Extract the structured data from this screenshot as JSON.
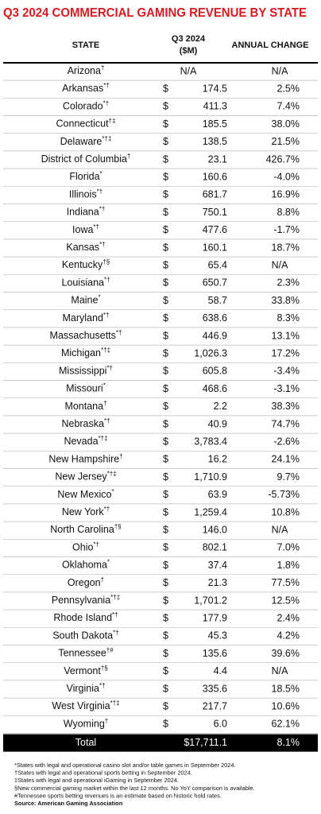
{
  "title": "Q3 2024 COMMERCIAL GAMING REVENUE BY STATE",
  "header": {
    "state": "STATE",
    "q3": [
      "Q3 2024",
      "($M)"
    ],
    "change": "ANNUAL CHANGE"
  },
  "rows": [
    {
      "state": "Arizona",
      "sup": "†",
      "q3": "N/A",
      "change": "N/A"
    },
    {
      "state": "Arkansas",
      "sup": "*†",
      "currency": "$",
      "q3": "174.5",
      "change": "2.5%"
    },
    {
      "state": "Colorado",
      "sup": "*†",
      "currency": "$",
      "q3": "411.3",
      "change": "7.4%"
    },
    {
      "state": "Connecticut",
      "sup": "†‡",
      "currency": "$",
      "q3": "185.5",
      "change": "38.0%"
    },
    {
      "state": "Delaware",
      "sup": "*†‡",
      "currency": "$",
      "q3": "138.5",
      "change": "21.5%"
    },
    {
      "state": "District of Columbia",
      "sup": "†",
      "currency": "$",
      "q3": "23.1",
      "change": "426.7%"
    },
    {
      "state": "Florida",
      "sup": "*",
      "currency": "$",
      "q3": "160.6",
      "change": "-4.0%"
    },
    {
      "state": "Illinois",
      "sup": "*†",
      "currency": "$",
      "q3": "681.7",
      "change": "16.9%"
    },
    {
      "state": "Indiana",
      "sup": "*†",
      "currency": "$",
      "q3": "750.1",
      "change": "8.8%"
    },
    {
      "state": "Iowa",
      "sup": "*†",
      "currency": "$",
      "q3": "477.6",
      "change": "-1.7%"
    },
    {
      "state": "Kansas",
      "sup": "*†",
      "currency": "$",
      "q3": "160.1",
      "change": "18.7%"
    },
    {
      "state": "Kentucky",
      "sup": "†§",
      "currency": "$",
      "q3": "65.4",
      "change": "N/A"
    },
    {
      "state": "Louisiana",
      "sup": "*†",
      "currency": "$",
      "q3": "650.7",
      "change": "2.3%"
    },
    {
      "state": "Maine",
      "sup": "*",
      "currency": "$",
      "q3": "58.7",
      "change": "33.8%"
    },
    {
      "state": "Maryland",
      "sup": "*†",
      "currency": "$",
      "q3": "638.6",
      "change": "8.3%"
    },
    {
      "state": "Massachusetts",
      "sup": "*†",
      "currency": "$",
      "q3": "446.9",
      "change": "13.1%"
    },
    {
      "state": "Michigan",
      "sup": "*†‡",
      "currency": "$",
      "q3": "1,026.3",
      "change": "17.2%"
    },
    {
      "state": "Mississippi",
      "sup": "*†",
      "currency": "$",
      "q3": "605.8",
      "change": "-3.4%"
    },
    {
      "state": "Missouri",
      "sup": "*",
      "currency": "$",
      "q3": "468.6",
      "change": "-3.1%"
    },
    {
      "state": "Montana",
      "sup": "†",
      "currency": "$",
      "q3": "2.2",
      "change": "38.3%"
    },
    {
      "state": "Nebraska",
      "sup": "*†",
      "currency": "$",
      "q3": "40.9",
      "change": "74.7%"
    },
    {
      "state": "Nevada",
      "sup": "*†‡",
      "currency": "$",
      "q3": "3,783.4",
      "change": "-2.6%"
    },
    {
      "state": "New Hampshire",
      "sup": "†",
      "currency": "$",
      "q3": "16.2",
      "change": "24.1%"
    },
    {
      "state": "New Jersey",
      "sup": "*†‡",
      "currency": "$",
      "q3": "1,710.9",
      "change": "9.7%"
    },
    {
      "state": "New Mexico",
      "sup": "*",
      "currency": "$",
      "q3": "63.9",
      "change": "-5.73%"
    },
    {
      "state": "New York",
      "sup": "*†",
      "currency": "$",
      "q3": "1,259.4",
      "change": "10.8%"
    },
    {
      "state": "North Carolina",
      "sup": "†§",
      "currency": "$",
      "q3": "146.0",
      "change": "N/A"
    },
    {
      "state": "Ohio",
      "sup": "*†",
      "currency": "$",
      "q3": "802.1",
      "change": "7.0%"
    },
    {
      "state": "Oklahoma",
      "sup": "*",
      "currency": "$",
      "q3": "37.4",
      "change": "1.8%"
    },
    {
      "state": "Oregon",
      "sup": "†",
      "currency": "$",
      "q3": "21.3",
      "change": "77.5%"
    },
    {
      "state": "Pennsylvania",
      "sup": "*†‡",
      "currency": "$",
      "q3": "1,701.2",
      "change": "12.5%"
    },
    {
      "state": "Rhode Island",
      "sup": "*†",
      "currency": "$",
      "q3": "177.9",
      "change": "2.4%"
    },
    {
      "state": "South Dakota",
      "sup": "*†",
      "currency": "$",
      "q3": "45.3",
      "change": "4.2%"
    },
    {
      "state": "Tennessee",
      "sup": "†#",
      "currency": "$",
      "q3": "135.6",
      "change": "39.6%"
    },
    {
      "state": "Vermont",
      "sup": "†§",
      "currency": "$",
      "q3": "4.4",
      "change": "N/A"
    },
    {
      "state": "Virginia",
      "sup": "*†",
      "currency": "$",
      "q3": "335.6",
      "change": "18.5%"
    },
    {
      "state": "West Virginia",
      "sup": "*†‡",
      "currency": "$",
      "q3": "217.7",
      "change": "10.6%"
    },
    {
      "state": "Wyoming",
      "sup": "†",
      "currency": "$",
      "q3": "6.0",
      "change": "62.1%"
    }
  ],
  "total": {
    "state": "Total",
    "q3": "$17,711.1",
    "change": "8.1%"
  },
  "footnotes": [
    "*States with legal and operational casino slot and/or table games in September 2024.",
    "†States with legal and operational sports betting in September 2024.",
    "‡States with legal and operational iGaming in September 2024.",
    "§New commercial gaming market within the last 12 months. No YoY comparison is available.",
    "#Tennessee sports betting revenues is an estimate based on historic hold rates."
  ],
  "source": "Source: American Gaming Association"
}
